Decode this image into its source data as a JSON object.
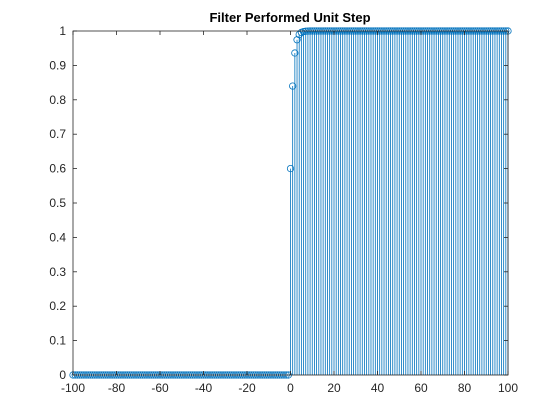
{
  "chart_data": {
    "type": "stem",
    "title": "Filter Performed Unit Step",
    "xlabel": "",
    "ylabel": "",
    "xlim": [
      -100,
      100
    ],
    "ylim": [
      0,
      1
    ],
    "xticks": [
      -100,
      -80,
      -60,
      -40,
      -20,
      0,
      20,
      40,
      60,
      80,
      100
    ],
    "yticks": [
      0,
      0.1,
      0.2,
      0.3,
      0.4,
      0.5,
      0.6,
      0.7,
      0.8,
      0.9,
      1
    ],
    "grid": false,
    "series": [
      {
        "color": "#0072BD",
        "marker": "circle",
        "x_range": [
          -100,
          100
        ],
        "x_step": 1,
        "values_before_zero": 0,
        "values_from_zero": [
          0.6,
          0.84,
          0.936,
          0.9744,
          0.98976,
          0.995904,
          0.9983616,
          0.99934464,
          0.99973786,
          0.99989514
        ],
        "value_after": 1
      }
    ]
  }
}
